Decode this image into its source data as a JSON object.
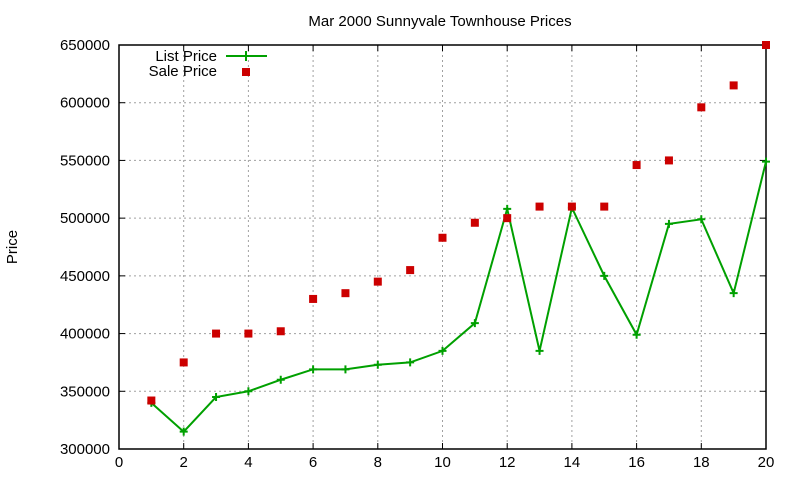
{
  "chart_data": {
    "type": "line",
    "title": "Mar 2000 Sunnyvale Townhouse Prices",
    "xlabel": "",
    "ylabel": "Price",
    "xlim": [
      0,
      20
    ],
    "ylim": [
      300000,
      650000
    ],
    "x_ticks": [
      0,
      2,
      4,
      6,
      8,
      10,
      12,
      14,
      16,
      18,
      20
    ],
    "y_ticks": [
      300000,
      350000,
      400000,
      450000,
      500000,
      550000,
      600000,
      650000
    ],
    "grid": true,
    "legend_position": "top-left",
    "x": [
      1,
      2,
      3,
      4,
      5,
      6,
      7,
      8,
      9,
      10,
      11,
      12,
      13,
      14,
      15,
      16,
      17,
      18,
      19,
      20
    ],
    "series": [
      {
        "name": "List Price",
        "style": "linespoints",
        "marker": "plus",
        "color": "#00a000",
        "values": [
          340000,
          315000,
          345000,
          350000,
          360000,
          369000,
          369000,
          373000,
          375000,
          385000,
          409000,
          508000,
          385000,
          509000,
          450000,
          399000,
          495000,
          499000,
          435000,
          549000
        ]
      },
      {
        "name": "Sale Price",
        "style": "points",
        "marker": "square",
        "color": "#cc0000",
        "values": [
          342000,
          375000,
          400000,
          400000,
          402000,
          430000,
          435000,
          445000,
          455000,
          483000,
          496000,
          500000,
          510000,
          510000,
          510000,
          546000,
          550000,
          596000,
          615000,
          650000
        ]
      }
    ]
  }
}
